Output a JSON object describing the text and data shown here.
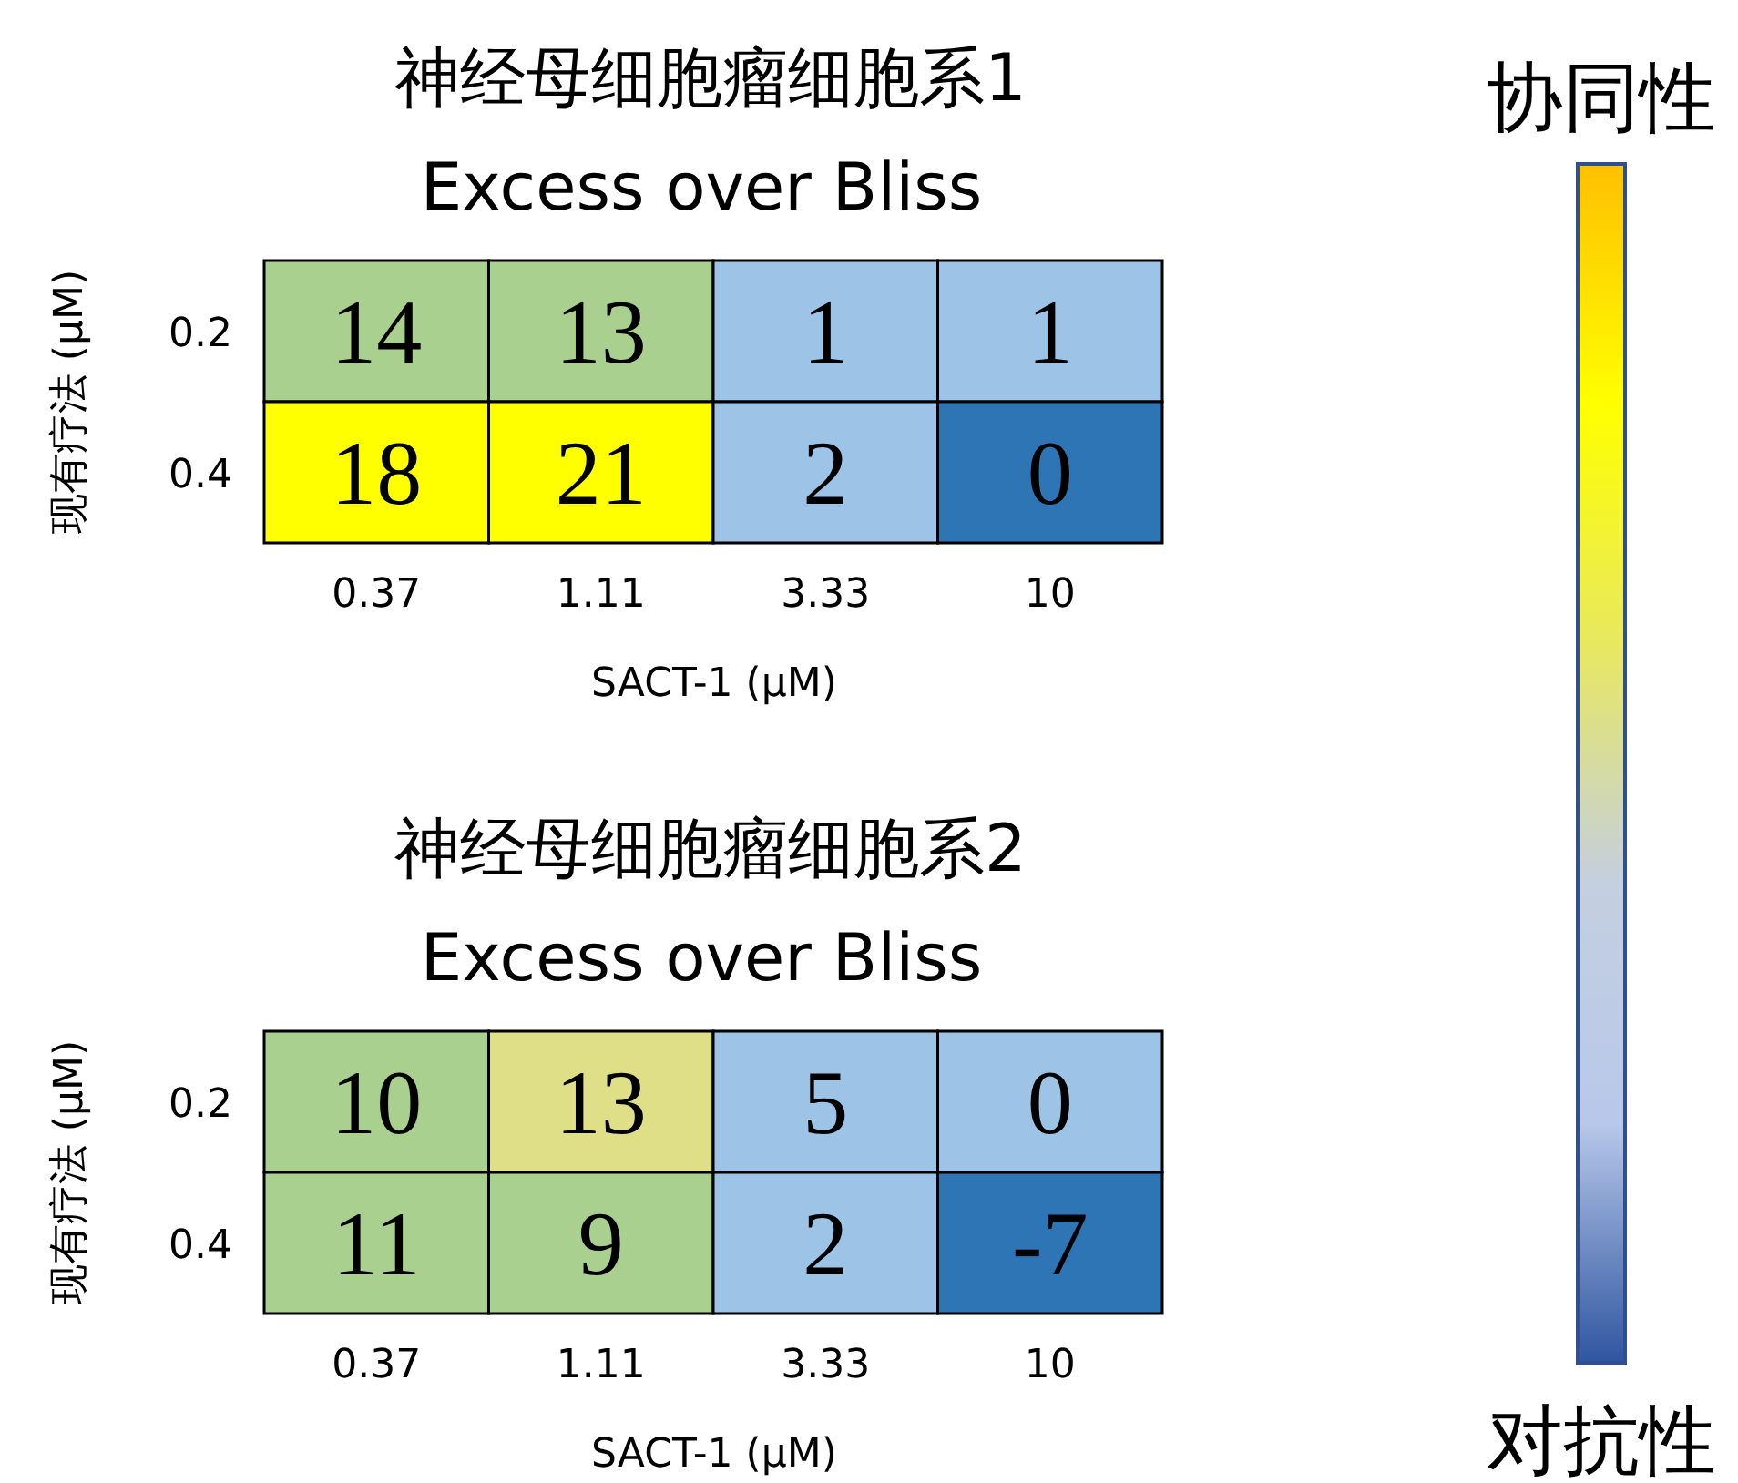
{
  "chart_data": [
    {
      "type": "heatmap",
      "title": "神经母细胞瘤细胞系1",
      "subtitle": "Excess over Bliss",
      "xlabel": "SACT-1 (µM)",
      "ylabel": "现有疗法 (µM)",
      "categories": [
        "0.37",
        "1.11",
        "3.33",
        "10"
      ],
      "y_categories": [
        "0.2",
        "0.4"
      ],
      "cells": [
        [
          14,
          13,
          1,
          1
        ],
        [
          18,
          21,
          2,
          0
        ]
      ],
      "colors": [
        [
          "#a9d08e",
          "#a9d08e",
          "#9dc3e6",
          "#9dc3e6"
        ],
        [
          "#ffff00",
          "#ffff00",
          "#9dc3e6",
          "#2e75b6"
        ]
      ],
      "data_labels": true
    },
    {
      "type": "heatmap",
      "title": "神经母细胞瘤细胞系2",
      "subtitle": "Excess over Bliss",
      "xlabel": "SACT-1 (µM)",
      "ylabel": "现有疗法 (µM)",
      "categories": [
        "0.37",
        "1.11",
        "3.33",
        "10"
      ],
      "y_categories": [
        "0.2",
        "0.4"
      ],
      "cells": [
        [
          10,
          13,
          5,
          0
        ],
        [
          11,
          9,
          2,
          -7
        ]
      ],
      "colors": [
        [
          "#a9d08e",
          "#dfdf88",
          "#9dc3e6",
          "#9dc3e6"
        ],
        [
          "#a9d08e",
          "#a9d08e",
          "#9dc3e6",
          "#2e75b6"
        ]
      ],
      "data_labels": true
    },
    {
      "type": "other",
      "title": "协同性",
      "annotations": [
        "对抗性"
      ],
      "colors": [
        "#ffc000",
        "#ffff00",
        "#e8e860",
        "#c4cfe0",
        "#b8c8ea",
        "#2f55a0"
      ]
    }
  ]
}
